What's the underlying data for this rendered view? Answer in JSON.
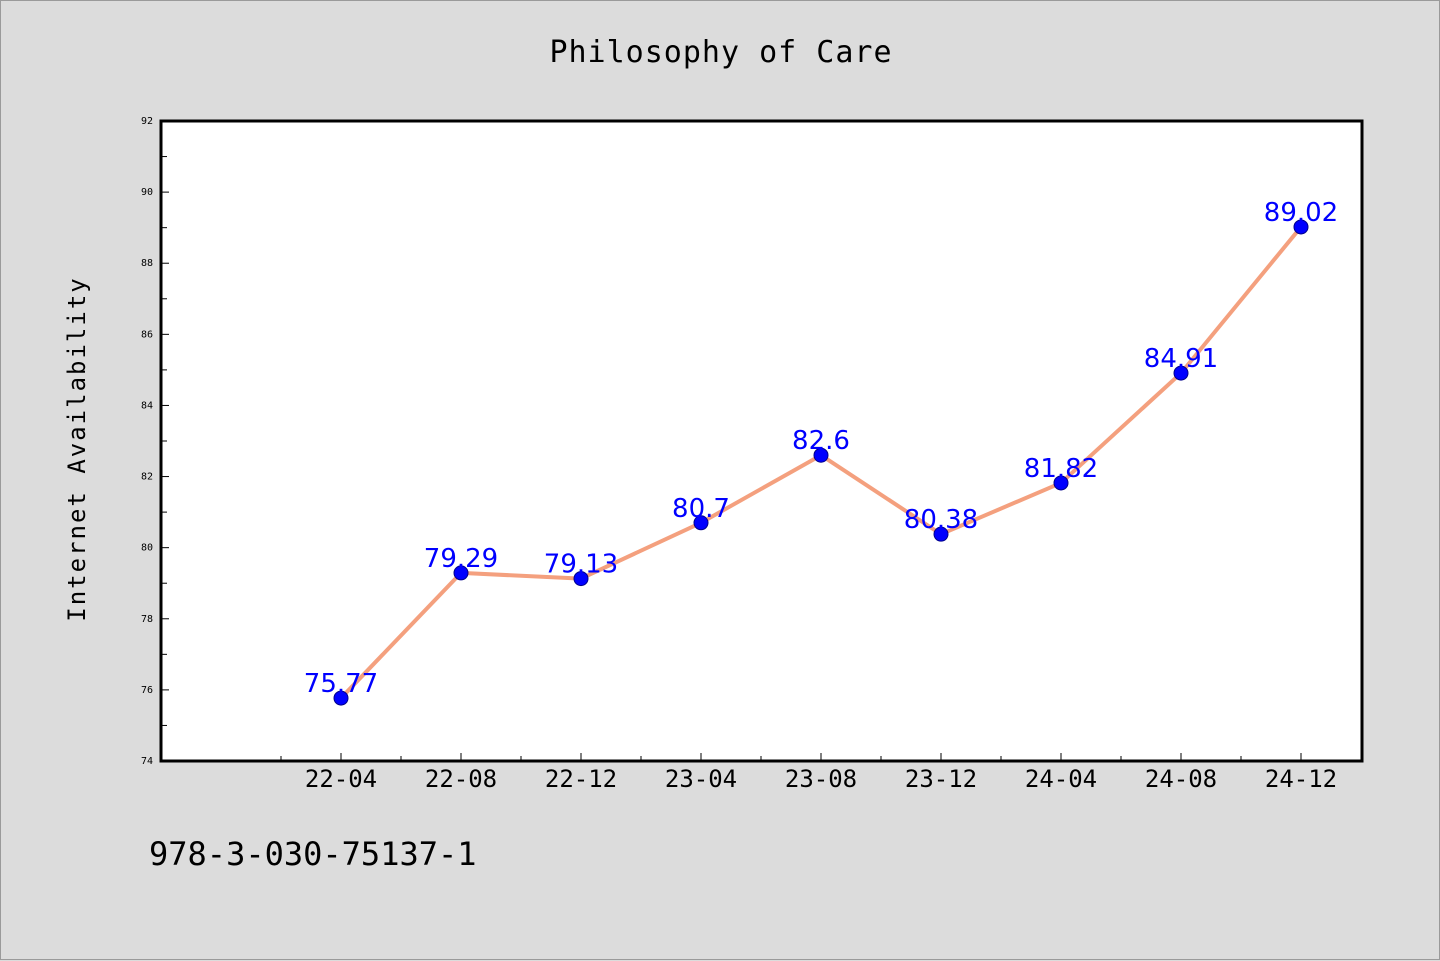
{
  "chart_data": {
    "type": "line",
    "title": "Philosophy of Care",
    "xlabel": "",
    "ylabel": "Internet Availability",
    "categories": [
      "22-04",
      "22-08",
      "22-12",
      "23-04",
      "23-08",
      "23-12",
      "24-04",
      "24-08",
      "24-12"
    ],
    "series": [
      {
        "values": [
          75.77,
          79.29,
          79.13,
          80.7,
          82.6,
          80.38,
          81.82,
          84.91,
          89.02
        ],
        "labels": [
          "75.77",
          "79.29",
          "79.13",
          "80.7",
          "82.6",
          "80.38",
          "81.82",
          "84.91",
          "89.02"
        ],
        "line_color": "#f4a07e",
        "marker_color": "#0000ff"
      }
    ],
    "ylim": [
      74,
      92
    ],
    "yticks": [
      "74",
      "76",
      "78",
      "80",
      "82",
      "84",
      "86",
      "88",
      "90",
      "92"
    ],
    "grid": false,
    "legend": "none",
    "data_label_color": "#0000ff"
  },
  "footer": {
    "code": "978-3-030-75137-1"
  }
}
